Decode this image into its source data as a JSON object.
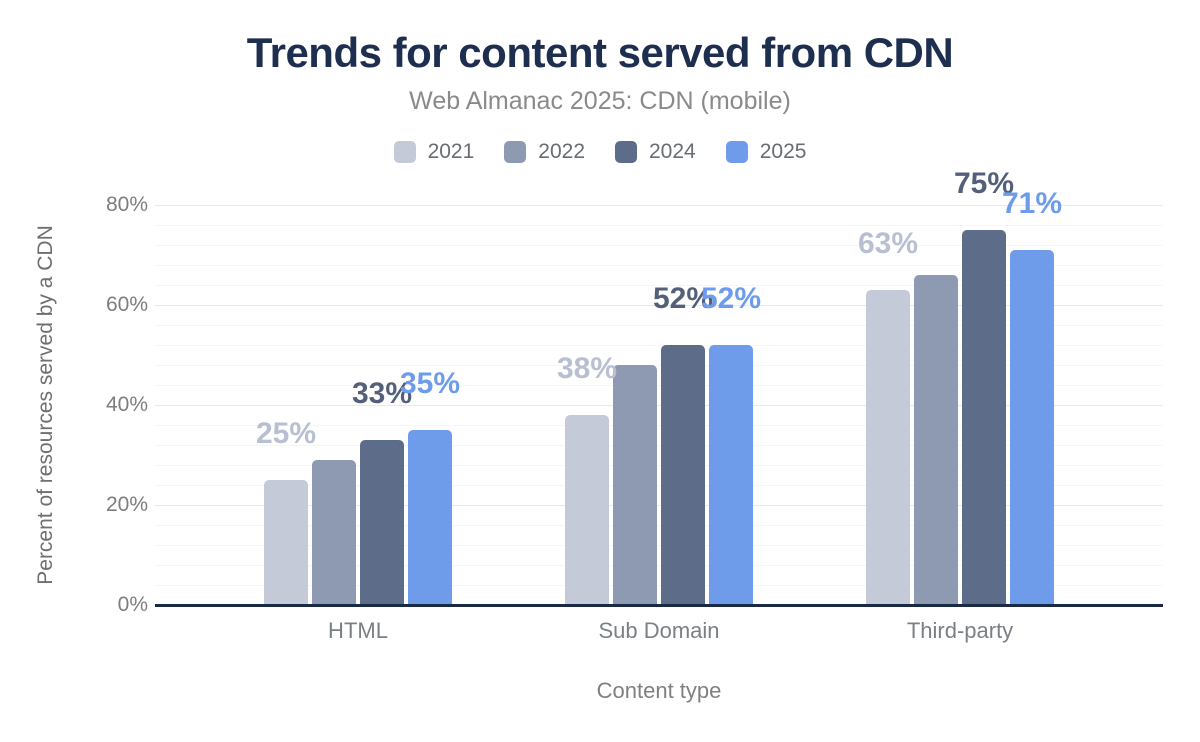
{
  "title": "Trends for content served from CDN",
  "subtitle": "Web Almanac 2025: CDN (mobile)",
  "colors": {
    "background": "#ffffff",
    "title_text": "#1e2e4f",
    "subtitle_text": "#8a8a8a",
    "axis_text": "#7d7d7d",
    "axis_title_text": "#6f6f6f",
    "baseline": "#1b2a44",
    "major_gridline": "#e8e9ec",
    "minor_gridline": "#f6f6f8"
  },
  "chart_data": {
    "type": "bar",
    "title": "Trends for content served from CDN",
    "subtitle": "Web Almanac 2025: CDN (mobile)",
    "categories": [
      "HTML",
      "Sub Domain",
      "Third-party"
    ],
    "series": [
      {
        "name": "2021",
        "color": "#c4cad8",
        "label_color": "#b7bfd1",
        "values": [
          25,
          38,
          63
        ],
        "labels": [
          "25%",
          "38%",
          "63%"
        ]
      },
      {
        "name": "2022",
        "color": "#8e9ab1",
        "label_color": null,
        "values": [
          29,
          48,
          66
        ],
        "labels": [
          null,
          null,
          null
        ]
      },
      {
        "name": "2024",
        "color": "#5d6c88",
        "label_color": "#546079",
        "values": [
          33,
          52,
          75
        ],
        "labels": [
          "33%",
          "52%",
          "75%"
        ]
      },
      {
        "name": "2025",
        "color": "#6e9cea",
        "label_color": "#6d9cec",
        "values": [
          35,
          52,
          71
        ],
        "labels": [
          "35%",
          "52%",
          "71%"
        ]
      }
    ],
    "xlabel": "Content type",
    "ylabel": "Percent of resources served by a CDN",
    "ylim": [
      0,
      80
    ],
    "yticks": [
      "0%",
      "20%",
      "40%",
      "60%",
      "80%"
    ],
    "ytick_values": [
      0,
      20,
      40,
      60,
      80
    ],
    "grid": "minor gridlines every 4%, major every 20%",
    "legend_position": "top"
  }
}
